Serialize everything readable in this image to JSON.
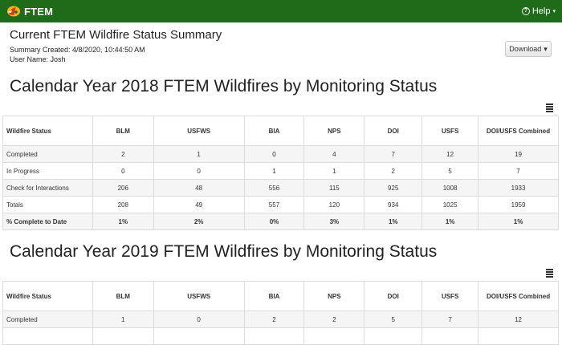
{
  "navbar": {
    "brand": "FTEM",
    "help_label": "Help"
  },
  "summary": {
    "title": "Current FTEM Wildfire Status Summary",
    "created": "Summary Created: 4/8/2020, 10:44:50 AM",
    "user": "User Name: Josh"
  },
  "download_label": "Download",
  "columns": [
    "Wildfire Status",
    "BLM",
    "USFWS",
    "BIA",
    "NPS",
    "DOI",
    "USFS",
    "DOI/USFS Combined"
  ],
  "sections": [
    {
      "title": "Calendar Year 2018 FTEM Wildfires by Monitoring Status",
      "rows": [
        [
          "Completed",
          "2",
          "1",
          "0",
          "4",
          "7",
          "12",
          "19"
        ],
        [
          "In Progress",
          "0",
          "0",
          "1",
          "1",
          "2",
          "5",
          "7"
        ],
        [
          "Check for Interactions",
          "206",
          "48",
          "556",
          "115",
          "925",
          "1008",
          "1933"
        ],
        [
          "Totals",
          "208",
          "49",
          "557",
          "120",
          "934",
          "1025",
          "1959"
        ],
        [
          "% Complete to Date",
          "1%",
          "2%",
          "0%",
          "3%",
          "1%",
          "1%",
          "1%"
        ]
      ]
    },
    {
      "title": "Calendar Year 2019 FTEM Wildfires by Monitoring Status",
      "rows": [
        [
          "Completed",
          "1",
          "0",
          "2",
          "2",
          "5",
          "7",
          "12"
        ],
        [
          "",
          "",
          "",
          "",
          "",
          "",
          "",
          ""
        ]
      ]
    }
  ]
}
